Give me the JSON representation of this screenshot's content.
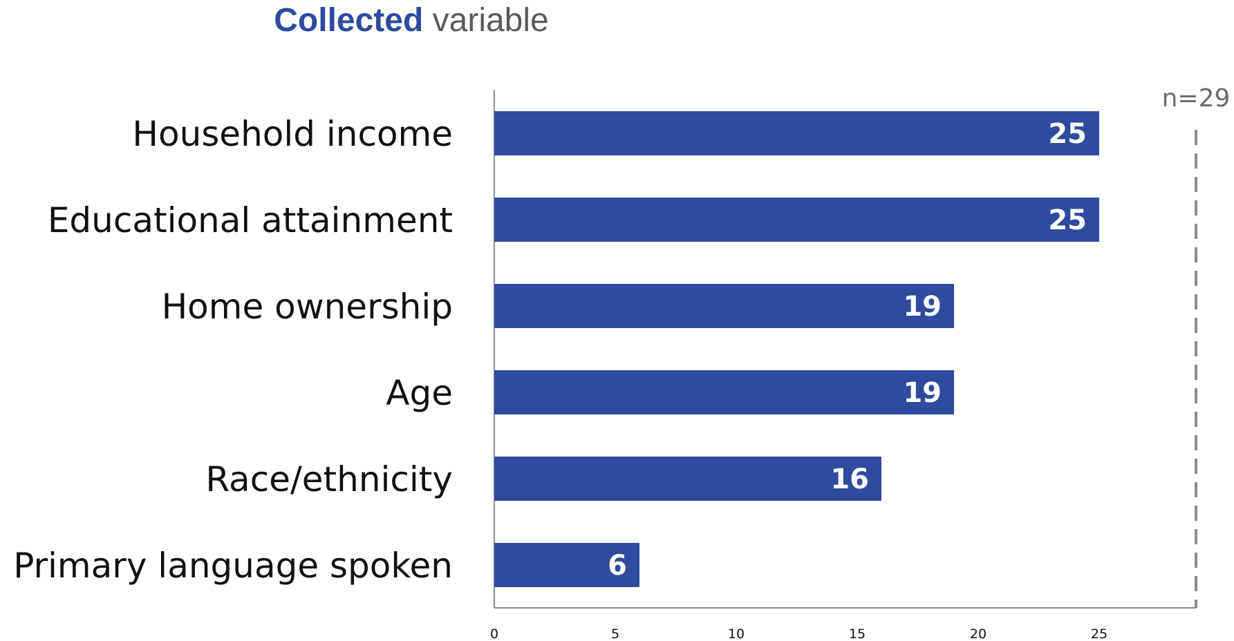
{
  "title": {
    "strong": "Collected",
    "rest": " variable"
  },
  "colors": {
    "bar": "#2f4a9e",
    "axis": "#8c8c8c",
    "reference_line": "#8c8c8c"
  },
  "chart_data": {
    "type": "bar",
    "orientation": "horizontal",
    "title": "Collected variable",
    "categories": [
      "Household income",
      "Educational attainment",
      "Home ownership",
      "Age",
      "Race/ethnicity",
      "Primary language spoken"
    ],
    "values": [
      25,
      25,
      19,
      19,
      16,
      6
    ],
    "data_labels": [
      "25",
      "25",
      "19",
      "19",
      "16",
      "6"
    ],
    "xlim": [
      0,
      29
    ],
    "x_ticks": [
      0,
      5,
      10,
      15,
      20,
      25
    ],
    "x_tick_labels": [
      "0",
      "5",
      "10",
      "15",
      "20",
      "25"
    ],
    "grid": false,
    "reference_line": {
      "value": 29,
      "label": "n=29",
      "style": "dashed"
    }
  }
}
